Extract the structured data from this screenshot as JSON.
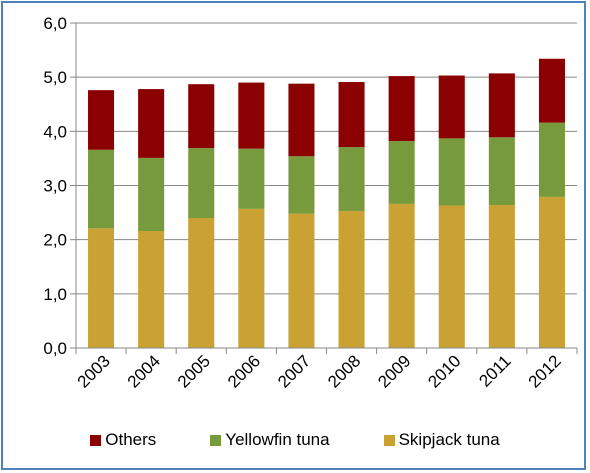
{
  "chart_data": {
    "type": "bar",
    "stacked": true,
    "categories": [
      "2003",
      "2004",
      "2005",
      "2006",
      "2007",
      "2008",
      "2009",
      "2010",
      "2011",
      "2012"
    ],
    "series": [
      {
        "name": "Skipjack tuna",
        "color": "#c9a233",
        "values": [
          2.21,
          2.16,
          2.4,
          2.57,
          2.48,
          2.53,
          2.66,
          2.63,
          2.64,
          2.79
        ]
      },
      {
        "name": "Yellowfin tuna",
        "color": "#779a3d",
        "values": [
          1.45,
          1.35,
          1.29,
          1.11,
          1.06,
          1.18,
          1.16,
          1.24,
          1.25,
          1.37
        ]
      },
      {
        "name": "Others",
        "color": "#8b0000",
        "values": [
          1.1,
          1.27,
          1.18,
          1.22,
          1.34,
          1.2,
          1.2,
          1.16,
          1.18,
          1.18
        ]
      }
    ],
    "y_ticks": [
      "0,0",
      "1,0",
      "2,0",
      "3,0",
      "4,0",
      "5,0",
      "6,0"
    ],
    "ylim": [
      0,
      6
    ],
    "grid": true,
    "legend_position": "bottom",
    "legend_order": [
      "Others",
      "Yellowfin tuna",
      "Skipjack tuna"
    ],
    "title": "",
    "xlabel": "",
    "ylabel": ""
  }
}
